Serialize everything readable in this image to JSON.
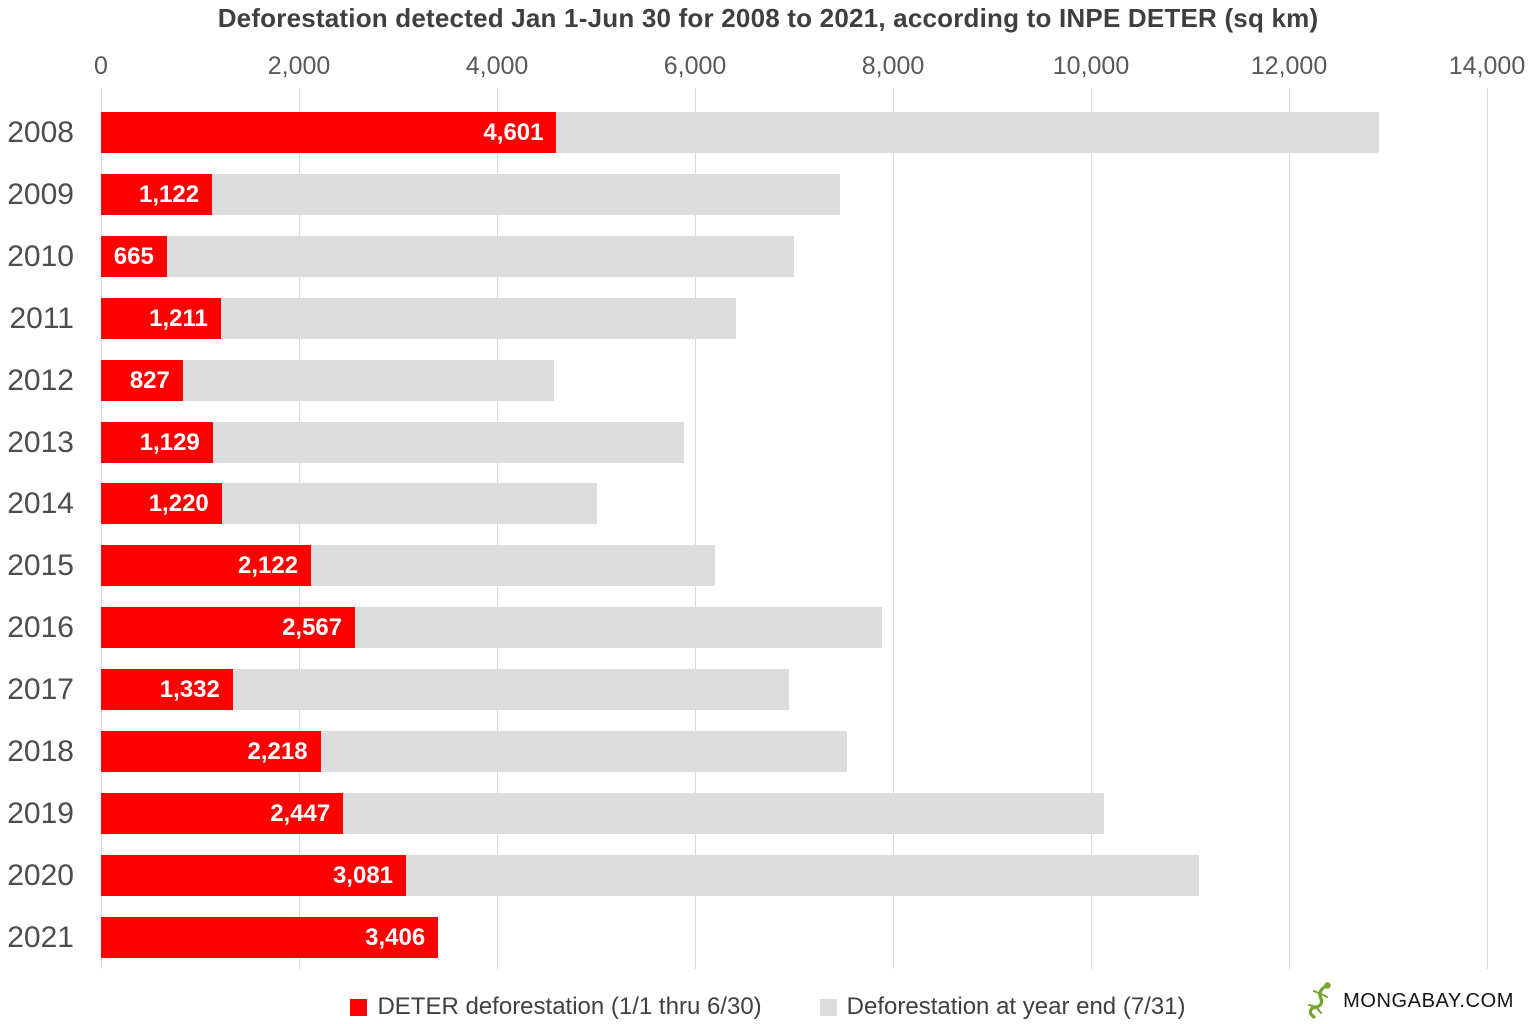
{
  "chart_data": {
    "type": "bar",
    "orientation": "horizontal",
    "title": "Deforestation detected Jan 1-Jun 30 for 2008 to 2021, according to INPE DETER (sq km)",
    "x_axis": {
      "position": "top",
      "min": 0,
      "max": 14000,
      "tick_interval": 2000,
      "tick_labels": [
        "0",
        "2,000",
        "4,000",
        "6,000",
        "8,000",
        "10,000",
        "12,000",
        "14,000"
      ],
      "grid": true
    },
    "categories": [
      "2008",
      "2009",
      "2010",
      "2011",
      "2012",
      "2013",
      "2014",
      "2015",
      "2016",
      "2017",
      "2018",
      "2019",
      "2020",
      "2021"
    ],
    "series": [
      {
        "name": "DETER deforestation (1/1 thru 6/30)",
        "color": "#fe0000",
        "values": [
          4601,
          1122,
          665,
          1211,
          827,
          1129,
          1220,
          2122,
          2567,
          1332,
          2218,
          2447,
          3081,
          3406
        ],
        "labels": [
          "4,601",
          "1,122",
          "665",
          "1,211",
          "827",
          "1,129",
          "1,220",
          "2,122",
          "2,567",
          "1,332",
          "2,218",
          "2,447",
          "3,081",
          "3,406"
        ]
      },
      {
        "name": "Deforestation at year end (7/31)",
        "color": "#dcdcdc",
        "values": [
          12911,
          7464,
          7000,
          6418,
          4571,
          5891,
          5012,
          6207,
          7893,
          6947,
          7536,
          10129,
          11088,
          null
        ]
      }
    ],
    "legend_position": "bottom"
  },
  "colors": {
    "deter_red": "#fe0000",
    "yearend_gray": "#dcdcdc",
    "gridline": "#d9d9d9",
    "bar_label": "#ffffff",
    "logo_green": "#76a32e"
  },
  "branding": {
    "logo_text": "MONGABAY.COM"
  }
}
